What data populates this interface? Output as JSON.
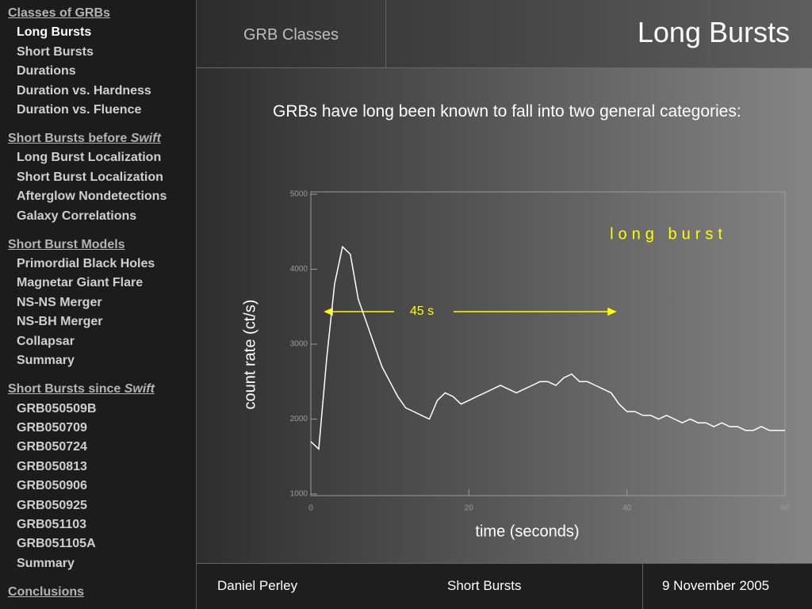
{
  "sidebar": {
    "sections": [
      {
        "heading": {
          "text": "Classes of GRBs"
        },
        "items": [
          "Long Bursts",
          "Short Bursts",
          "Durations",
          "Duration vs. Hardness",
          "Duration vs. Fluence"
        ]
      },
      {
        "heading": {
          "text": "Short Bursts before ",
          "emphasis": "Swift"
        },
        "items": [
          "Long Burst Localization",
          "Short Burst Localization",
          "Afterglow Nondetections",
          "Galaxy Correlations"
        ]
      },
      {
        "heading": {
          "text": "Short Burst Models"
        },
        "items": [
          "Primordial Black Holes",
          "Magnetar Giant Flare",
          "NS-NS Merger",
          "NS-BH Merger",
          "Collapsar",
          "Summary"
        ]
      },
      {
        "heading": {
          "text": "Short Bursts since ",
          "emphasis": "Swift"
        },
        "items": [
          "GRB050509B",
          "GRB050709",
          "GRB050724",
          "GRB050813",
          "GRB050906",
          "GRB050925",
          "GRB051103",
          "GRB051105A",
          "Summary"
        ]
      },
      {
        "heading": {
          "text": "Conclusions"
        },
        "items": []
      }
    ]
  },
  "header": {
    "section": "GRB Classes",
    "title": "Long Bursts"
  },
  "body": {
    "text": "GRBs have long been known to fall into two general categories:"
  },
  "chart": {
    "type": "line",
    "xlabel": "time (seconds)",
    "ylabel": "count rate (ct/s)",
    "annotation": "long burst",
    "duration_label": "45 s",
    "color": "#ffffff",
    "xlim": [
      0,
      60
    ],
    "ylim": [
      1000,
      5000
    ],
    "xticks": [
      0,
      20,
      40,
      60
    ],
    "yticks": [
      1000,
      2000,
      3000,
      4000,
      5000
    ],
    "x": [
      0,
      1,
      2,
      3,
      4,
      5,
      6,
      7,
      8,
      9,
      10,
      11,
      12,
      13,
      14,
      15,
      16,
      17,
      18,
      19,
      20,
      21,
      22,
      23,
      24,
      25,
      26,
      27,
      28,
      29,
      30,
      31,
      32,
      33,
      34,
      35,
      36,
      37,
      38,
      39,
      40,
      41,
      42,
      43,
      44,
      45,
      46,
      47,
      48,
      49,
      50,
      51,
      52,
      53,
      54,
      55,
      56,
      57,
      58,
      59,
      60
    ],
    "values": [
      1700,
      1600,
      2800,
      3800,
      4300,
      4200,
      3600,
      3300,
      3000,
      2700,
      2500,
      2300,
      2150,
      2100,
      2050,
      2000,
      2250,
      2350,
      2300,
      2200,
      2250,
      2300,
      2350,
      2400,
      2450,
      2400,
      2350,
      2400,
      2450,
      2500,
      2500,
      2450,
      2550,
      2600,
      2500,
      2500,
      2450,
      2400,
      2350,
      2200,
      2100,
      2100,
      2050,
      2050,
      2000,
      2050,
      2000,
      1950,
      2000,
      1950,
      1950,
      1900,
      1950,
      1900,
      1900,
      1850,
      1850,
      1900,
      1850,
      1850,
      1850
    ]
  },
  "footer": {
    "author": "Daniel Perley",
    "talk": "Short Bursts",
    "date": "9 November 2005"
  }
}
